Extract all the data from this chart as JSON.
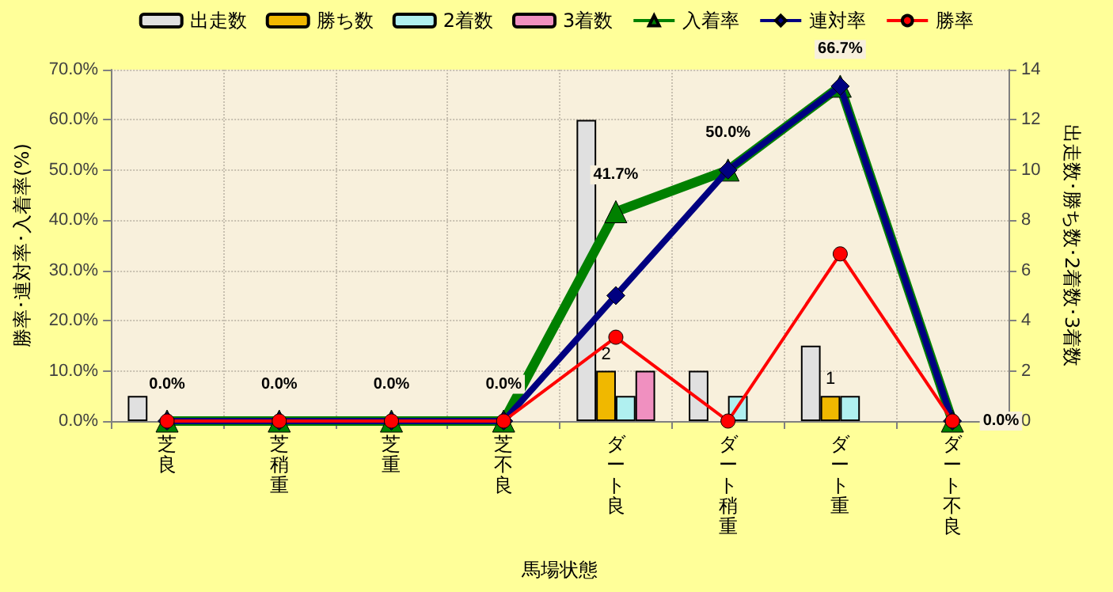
{
  "chart_data": {
    "type": "bar",
    "xlabel": "馬場状態",
    "ylabel": "勝率･連対率･入着率(%)",
    "y2label": "出走数･勝ち数･2着数･3着数",
    "categories": [
      "芝良",
      "芝稍重",
      "芝重",
      "芝不良",
      "ダート良",
      "ダート稍重",
      "ダート重",
      "ダート不良"
    ],
    "series": [
      {
        "name": "出走数",
        "axis": "y2",
        "color": "#e0e0e0",
        "values": [
          1,
          null,
          null,
          null,
          12,
          2,
          3,
          null
        ]
      },
      {
        "name": "勝ち数",
        "axis": "y2",
        "color": "#f0b800",
        "values": [
          null,
          null,
          null,
          null,
          2,
          null,
          1,
          null
        ],
        "value_labels": [
          null,
          null,
          null,
          null,
          "2",
          null,
          "1",
          null
        ]
      },
      {
        "name": "2着数",
        "axis": "y2",
        "color": "#b0f0f0",
        "values": [
          null,
          null,
          null,
          null,
          1,
          1,
          1,
          null
        ]
      },
      {
        "name": "3着数",
        "axis": "y2",
        "color": "#f090c0",
        "values": [
          null,
          null,
          null,
          null,
          2,
          null,
          null,
          null
        ]
      },
      {
        "name": "入着率",
        "type": "line",
        "color": "#008000",
        "marker": "triangle",
        "values": [
          0,
          0,
          0,
          0,
          41.7,
          50,
          66.7,
          0
        ],
        "value_labels": [
          "0.0%",
          "0.0%",
          "0.0%",
          "0.0%",
          "41.7%",
          "50.0%",
          "66.7%",
          "0.0%"
        ]
      },
      {
        "name": "連対率",
        "type": "line",
        "color": "#000080",
        "marker": "diamond",
        "values": [
          0,
          0,
          0,
          0,
          25,
          50,
          66.7,
          0
        ]
      },
      {
        "name": "勝率",
        "type": "line",
        "color": "#ff0000",
        "marker": "circle",
        "values": [
          0,
          0,
          0,
          0,
          16.7,
          0,
          33.3,
          0
        ]
      }
    ],
    "ylim": [
      0,
      70
    ],
    "yticks": [
      {
        "value": 0,
        "label": "0.0%"
      },
      {
        "value": 10,
        "label": "10.0%"
      },
      {
        "value": 20,
        "label": "20.0%"
      },
      {
        "value": 30,
        "label": "30.0%"
      },
      {
        "value": 40,
        "label": "40.0%"
      },
      {
        "value": 50,
        "label": "50.0%"
      },
      {
        "value": 60,
        "label": "60.0%"
      },
      {
        "value": 70,
        "label": "70.0%"
      }
    ],
    "y2lim": [
      0,
      14
    ],
    "y2ticks": [
      0,
      2,
      4,
      6,
      8,
      10,
      12,
      14
    ],
    "grid": true,
    "legend": "top"
  }
}
